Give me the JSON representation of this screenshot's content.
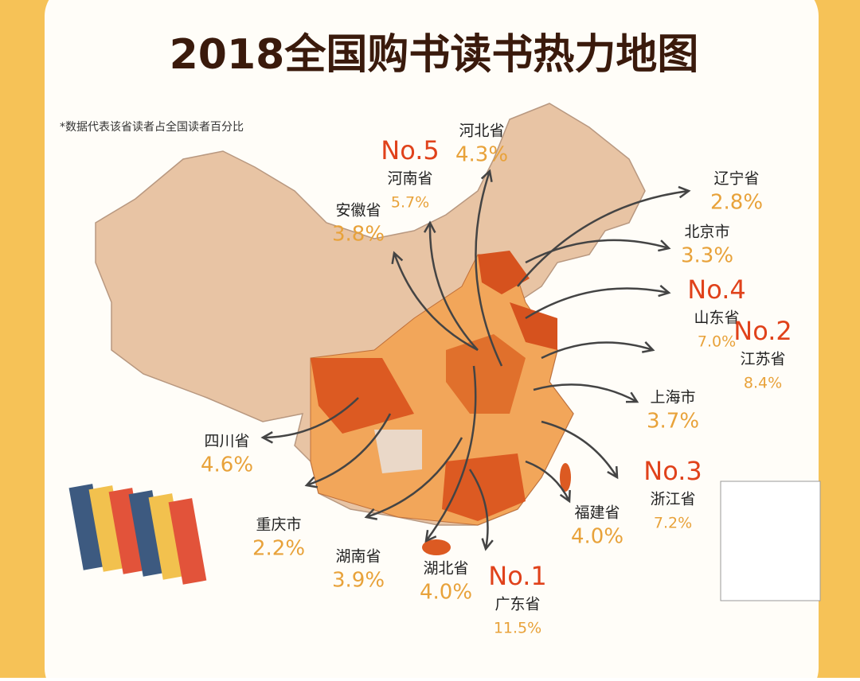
{
  "header": {
    "title": "2018全国购书读书热力地图",
    "note": "*数据代表该省读者占全国读者百分比"
  },
  "provinces": [
    {
      "rank": "No.5",
      "name": "河南省",
      "share": "5.7%"
    },
    {
      "name": "河北省",
      "share": "4.3%"
    },
    {
      "name": "安徽省",
      "share": "3.8%"
    },
    {
      "name": "辽宁省",
      "share": "2.8%"
    },
    {
      "name": "北京市",
      "share": "3.3%"
    },
    {
      "rank": "No.4",
      "name": "山东省",
      "share": "7.0%"
    },
    {
      "rank": "No.2",
      "name": "江苏省",
      "share": "8.4%"
    },
    {
      "name": "上海市",
      "share": "3.7%"
    },
    {
      "rank": "No.3",
      "name": "浙江省",
      "share": "7.2%"
    },
    {
      "name": "四川省",
      "share": "4.6%"
    },
    {
      "name": "重庆市",
      "share": "2.2%"
    },
    {
      "name": "湖南省",
      "share": "3.9%"
    },
    {
      "name": "福建省",
      "share": "4.0%"
    },
    {
      "name": "湖北省",
      "share": "4.0%"
    },
    {
      "rank": "No.1",
      "name": "广东省",
      "share": "11.5%"
    }
  ]
}
